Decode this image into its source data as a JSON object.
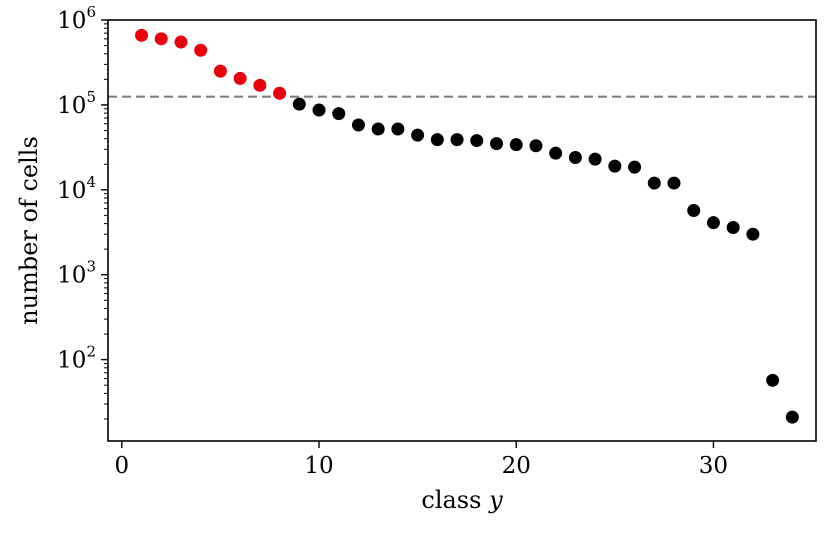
{
  "chart_data": {
    "type": "scatter",
    "xlabel": "class y",
    "xlabel_parts": [
      "class ",
      "y"
    ],
    "ylabel": "number of cells",
    "yscale": "log",
    "xlim": [
      -0.7,
      35.2
    ],
    "ylim": [
      11,
      1000000
    ],
    "xticks": [
      0,
      10,
      20,
      30
    ],
    "xtick_labels": [
      "0",
      "10",
      "20",
      "30"
    ],
    "yticks": [
      100,
      1000,
      10000,
      100000,
      1000000
    ],
    "ytick_labels": [
      {
        "base": "10",
        "exp": "2"
      },
      {
        "base": "10",
        "exp": "3"
      },
      {
        "base": "10",
        "exp": "4"
      },
      {
        "base": "10",
        "exp": "5"
      },
      {
        "base": "10",
        "exp": "6"
      }
    ],
    "threshold": {
      "y": 125000,
      "color": "#808080",
      "style": "dashed"
    },
    "grid": false,
    "series": [
      {
        "color": "#e8000b",
        "x": [
          1,
          2,
          3,
          4,
          5,
          6,
          7,
          8
        ],
        "y": [
          660000,
          600000,
          550000,
          440000,
          250000,
          205000,
          170000,
          137000
        ]
      },
      {
        "color": "#000000",
        "x": [
          9,
          10,
          11,
          12,
          13,
          14,
          15,
          16,
          17,
          18,
          19,
          20,
          21,
          22,
          23,
          24,
          25,
          26,
          27,
          28,
          29,
          30,
          31,
          32,
          33,
          34
        ],
        "y": [
          102000,
          87000,
          79000,
          58000,
          52000,
          52000,
          44000,
          39000,
          39000,
          38000,
          35000,
          34000,
          33000,
          27000,
          24000,
          23000,
          19000,
          18500,
          12000,
          12000,
          5700,
          4100,
          3600,
          3000,
          57,
          21
        ]
      }
    ]
  }
}
